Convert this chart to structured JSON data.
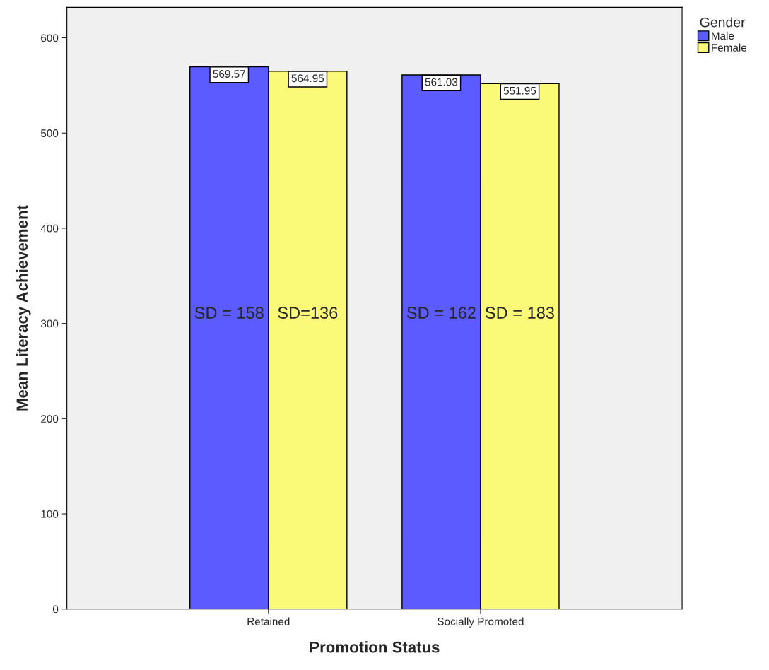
{
  "chart_data": {
    "type": "bar",
    "xlabel": "Promotion Status",
    "ylabel": "Mean Literacy Achievement",
    "legend_title": "Gender",
    "categories": [
      "Retained",
      "Socially Promoted"
    ],
    "series": [
      {
        "name": "Male",
        "color": "#5b5bff",
        "values": [
          569.57,
          561.03
        ]
      },
      {
        "name": "Female",
        "color": "#fafa78",
        "values": [
          564.95,
          551.95
        ]
      }
    ],
    "ylim": [
      0,
      632
    ],
    "yticks": [
      0,
      100,
      200,
      300,
      400,
      500,
      600
    ],
    "grid": false,
    "legend": "top right",
    "data_labels": true,
    "annotations": [
      "SD = 158",
      "SD=136",
      "SD = 162",
      "SD = 183"
    ]
  }
}
